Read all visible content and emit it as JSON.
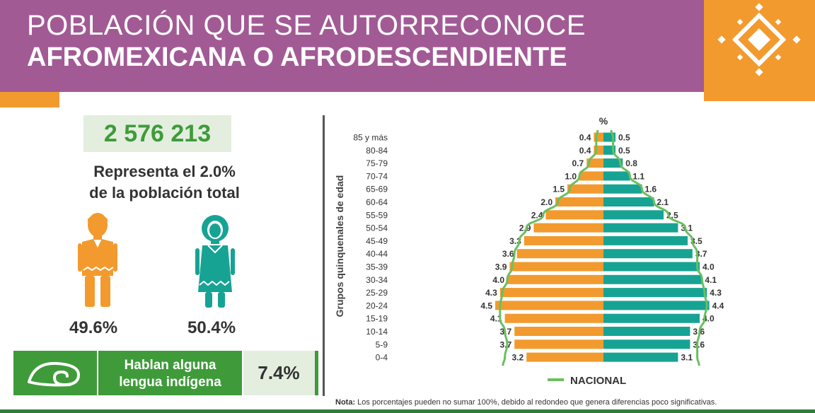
{
  "header": {
    "title_line1": "POBLACIÓN QUE SE AUTORREconoce",
    "title_line2": "AFROMEXICANA O AFRODESCENDIENTE"
  },
  "summary": {
    "total": "2 576 213",
    "represents_line1": "Representa el 2.0%",
    "represents_line2": "de la población total",
    "male_pct": "49.6%",
    "female_pct": "50.4%",
    "language_label_line1": "Hablan alguna",
    "language_label_line2": "lengua indígena",
    "language_pct": "7.4%"
  },
  "colors": {
    "header_purple": "#a25a95",
    "accent_orange": "#f29a2e",
    "male_orange": "#f29a2e",
    "female_teal": "#17a394",
    "national_green": "#6abf5e",
    "brand_green": "#3f9b3a"
  },
  "icons": {
    "logo": "diamond-pattern-icon",
    "male": "man-icon",
    "female": "woman-icon",
    "language": "speech-swirl-icon"
  },
  "chart_data": {
    "type": "bar",
    "subtype": "population-pyramid",
    "unit_label": "%",
    "ylabel": "Grupos quinquenales de edad",
    "categories": [
      "85 y más",
      "80-84",
      "75-79",
      "70-74",
      "65-69",
      "60-64",
      "55-59",
      "50-54",
      "45-49",
      "40-44",
      "35-39",
      "30-34",
      "25-29",
      "20-24",
      "15-19",
      "10-14",
      "5-9",
      "0-4"
    ],
    "series": [
      {
        "side": "left",
        "color": "#f29a2e",
        "values": [
          0.4,
          0.4,
          0.7,
          1.0,
          1.5,
          2.0,
          2.4,
          2.9,
          3.3,
          3.6,
          3.9,
          4.0,
          4.3,
          4.5,
          4.1,
          3.7,
          3.7,
          3.2
        ]
      },
      {
        "side": "right",
        "color": "#17a394",
        "values": [
          0.5,
          0.5,
          0.8,
          1.1,
          1.6,
          2.1,
          2.5,
          3.1,
          3.5,
          3.7,
          4.0,
          4.1,
          4.3,
          4.4,
          4.0,
          3.6,
          3.6,
          3.1
        ]
      }
    ],
    "national_line": {
      "name": "NACIONAL",
      "color": "#6abf5e",
      "left": [
        0.3,
        0.3,
        0.6,
        1.0,
        1.4,
        1.9,
        2.5,
        3.2,
        3.5,
        3.7,
        3.8,
        4.0,
        4.2,
        4.3,
        4.3,
        4.1,
        4.0,
        4.1
      ],
      "right": [
        0.4,
        0.4,
        0.7,
        1.1,
        1.6,
        2.1,
        2.7,
        3.4,
        3.7,
        3.9,
        3.9,
        4.1,
        4.2,
        4.3,
        4.2,
        4.0,
        3.9,
        3.9
      ]
    },
    "xlim": [
      0,
      4.6
    ],
    "legend_position": "bottom-center"
  },
  "note": {
    "label": "Nota:",
    "text": "Los porcentajes pueden no sumar 100%, debido al redondeo que genera diferencias poco significativas."
  }
}
